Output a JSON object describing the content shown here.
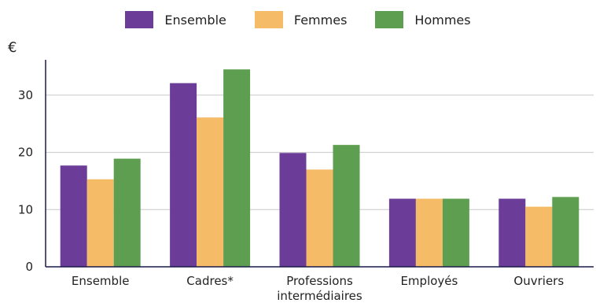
{
  "chart_data": {
    "type": "bar",
    "ylabel": "€",
    "ylim": [
      0,
      37
    ],
    "yticks": [
      0,
      10,
      20,
      30
    ],
    "grid": true,
    "legend_position": "top-center",
    "categories": [
      "Ensemble",
      "Cadres*",
      "Professions intermédiaires",
      "Employés",
      "Ouvriers"
    ],
    "category_lines": [
      [
        "Ensemble"
      ],
      [
        "Cadres*"
      ],
      [
        "Professions",
        "intermédiaires"
      ],
      [
        "Employés"
      ],
      [
        "Ouvriers"
      ]
    ],
    "series": [
      {
        "name": "Ensemble",
        "color": "#6b3d99",
        "values": [
          17.7,
          32.1,
          19.9,
          11.9,
          11.9
        ]
      },
      {
        "name": "Femmes",
        "color": "#f5bb66",
        "values": [
          15.3,
          26.1,
          17.0,
          11.9,
          10.5
        ]
      },
      {
        "name": "Hommes",
        "color": "#5e9e50",
        "values": [
          18.9,
          34.5,
          21.3,
          11.9,
          12.2
        ]
      }
    ]
  }
}
